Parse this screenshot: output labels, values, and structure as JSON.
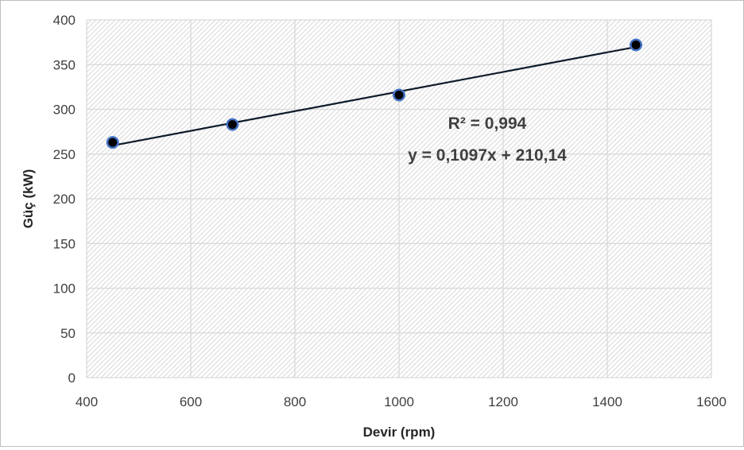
{
  "chart_data": {
    "type": "scatter",
    "title": "",
    "xlabel": "Devir (rpm)",
    "ylabel": "Güç (kW)",
    "xlim": [
      400,
      1600
    ],
    "ylim": [
      0,
      400
    ],
    "xticks": [
      400,
      600,
      800,
      1000,
      1200,
      1400,
      1600
    ],
    "yticks": [
      0,
      50,
      100,
      150,
      200,
      250,
      300,
      350,
      400
    ],
    "grid": true,
    "background_pattern": "diagonal hatch",
    "marker_color": "#4472c4",
    "marker_center_color": "#000000",
    "trendline_color": "#0d1b2a",
    "points": [
      {
        "x": 450,
        "y": 263
      },
      {
        "x": 680,
        "y": 283
      },
      {
        "x": 1000,
        "y": 316
      },
      {
        "x": 1455,
        "y": 372
      }
    ],
    "trendline": {
      "slope": 0.1097,
      "intercept": 210.14,
      "x_range": [
        450,
        1455
      ]
    },
    "annotations": {
      "r2": "R² = 0,994",
      "equation": "y = 0,1097x + 210,14"
    }
  }
}
